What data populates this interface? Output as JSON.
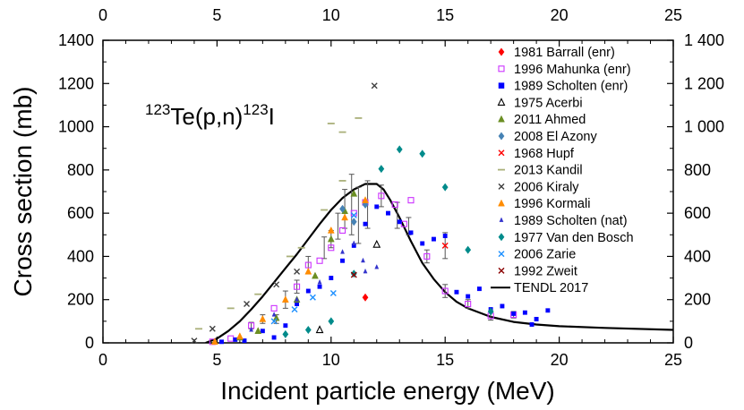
{
  "chart_data": {
    "type": "scatter",
    "annotation": {
      "mass1": "123",
      "mid": "Te(p,n)",
      "mass2": "123",
      "end": "I"
    },
    "xlabel": "Incident particle energy (MeV)",
    "ylabel": "Cross section (mb)",
    "xlim": [
      0,
      25
    ],
    "ylim": [
      0,
      1400
    ],
    "x_ticks": [
      0,
      5,
      10,
      15,
      20,
      25
    ],
    "y_ticks_left": [
      "0",
      "200",
      "400",
      "600",
      "800",
      "1000",
      "1200",
      "1400"
    ],
    "y_ticks_right": [
      "0",
      "200",
      "400",
      "600",
      "800",
      "1 000",
      "1 200",
      "1 400"
    ],
    "y_tick_values": [
      0,
      200,
      400,
      600,
      800,
      1000,
      1200,
      1400
    ],
    "legend_position": "top-right",
    "series": [
      {
        "name": "1981 Barrall (enr)",
        "marker": "diamond",
        "color": "#ff0000",
        "hollow": false,
        "points": [
          [
            11.5,
            210
          ]
        ]
      },
      {
        "name": "1996 Mahunka (enr)",
        "marker": "square",
        "color": "#cc33ff",
        "hollow": true,
        "points": [
          [
            4.8,
            5
          ],
          [
            5.6,
            20
          ],
          [
            6.5,
            80
          ],
          [
            7.5,
            160
          ],
          [
            8.5,
            260
          ],
          [
            9.0,
            360
          ],
          [
            9.5,
            380
          ],
          [
            10.0,
            440
          ],
          [
            10.5,
            520
          ],
          [
            11.0,
            600
          ],
          [
            11.5,
            650
          ],
          [
            12.2,
            680
          ],
          [
            12.8,
            640
          ],
          [
            13.2,
            550
          ],
          [
            13.5,
            660
          ],
          [
            14.2,
            400
          ],
          [
            15.0,
            240
          ],
          [
            16.0,
            180
          ],
          [
            17.0,
            125
          ],
          [
            18.0,
            130
          ]
        ]
      },
      {
        "name": "1989  Scholten (enr)",
        "marker": "square",
        "color": "#0000ff",
        "hollow": false,
        "points": [
          [
            5.2,
            5
          ],
          [
            5.8,
            15
          ],
          [
            6.2,
            10
          ],
          [
            7.0,
            55
          ],
          [
            7.5,
            25
          ],
          [
            8.0,
            80
          ],
          [
            8.5,
            180
          ],
          [
            9.0,
            240
          ],
          [
            9.5,
            260
          ],
          [
            10.0,
            300
          ],
          [
            10.5,
            380
          ],
          [
            11.0,
            450
          ],
          [
            11.5,
            550
          ],
          [
            12.0,
            630
          ],
          [
            12.5,
            600
          ],
          [
            13.0,
            560
          ],
          [
            13.5,
            510
          ],
          [
            14.0,
            460
          ],
          [
            14.5,
            480
          ],
          [
            15.0,
            495
          ],
          [
            15.5,
            235
          ],
          [
            16.0,
            215
          ],
          [
            16.5,
            250
          ],
          [
            17.0,
            155
          ],
          [
            17.5,
            170
          ],
          [
            18.0,
            135
          ],
          [
            18.5,
            140
          ],
          [
            19.0,
            110
          ],
          [
            19.5,
            150
          ],
          [
            18.8,
            85
          ]
        ]
      },
      {
        "name": "1975 Acerbi",
        "marker": "triangle",
        "color": "#000000",
        "hollow": true,
        "points": [
          [
            9.5,
            60
          ],
          [
            12.0,
            455
          ]
        ]
      },
      {
        "name": "2011 Ahmed",
        "marker": "triangle",
        "color": "#6b8e23",
        "hollow": false,
        "points": [
          [
            6.0,
            25
          ],
          [
            6.8,
            55
          ],
          [
            7.6,
            115
          ],
          [
            8.5,
            200
          ],
          [
            9.3,
            310
          ],
          [
            10.0,
            480
          ],
          [
            10.6,
            610
          ],
          [
            11.0,
            690
          ]
        ]
      },
      {
        "name": "2008 El Azony",
        "marker": "diamond",
        "color": "#4682b4",
        "hollow": false,
        "points": [
          [
            10.5,
            620
          ],
          [
            11.0,
            560
          ],
          [
            11.5,
            640
          ]
        ]
      },
      {
        "name": "1968 Hupf",
        "marker": "x",
        "color": "#ff0000",
        "hollow": false,
        "points": [
          [
            15.0,
            450
          ]
        ]
      },
      {
        "name": "2013 Kandil",
        "marker": "dash",
        "color": "#aab07a",
        "hollow": false,
        "points": [
          [
            4.2,
            65
          ],
          [
            5.6,
            160
          ],
          [
            6.8,
            225
          ],
          [
            8.2,
            400
          ],
          [
            8.7,
            440
          ],
          [
            9.7,
            615
          ],
          [
            10.5,
            750
          ],
          [
            11.2,
            1040
          ],
          [
            10.5,
            975
          ],
          [
            10.0,
            1015
          ]
        ]
      },
      {
        "name": "2006 Kiraly",
        "marker": "x",
        "color": "#404040",
        "hollow": false,
        "points": [
          [
            4.0,
            10
          ],
          [
            4.8,
            65
          ],
          [
            6.3,
            180
          ],
          [
            7.6,
            270
          ],
          [
            8.5,
            330
          ],
          [
            11.9,
            1190
          ]
        ]
      },
      {
        "name": "1996 Kormali",
        "marker": "triangle",
        "color": "#ff8c00",
        "hollow": false,
        "points": [
          [
            4.9,
            5
          ],
          [
            6.0,
            30
          ],
          [
            7.0,
            110
          ],
          [
            8.0,
            200
          ],
          [
            9.0,
            330
          ],
          [
            10.0,
            520
          ],
          [
            10.6,
            580
          ],
          [
            11.5,
            660
          ]
        ]
      },
      {
        "name": "1989 Scholten (nat)",
        "marker": "triangle-small",
        "color": "#3333cc",
        "hollow": false,
        "points": [
          [
            6.5,
            60
          ],
          [
            7.5,
            130
          ],
          [
            8.5,
            200
          ],
          [
            9.5,
            280
          ],
          [
            10.5,
            420
          ],
          [
            11.5,
            330
          ],
          [
            12.0,
            350
          ],
          [
            11.0,
            460
          ],
          [
            11.4,
            380
          ]
        ]
      },
      {
        "name": "1977 Van den Bosch",
        "marker": "diamond",
        "color": "#008b8b",
        "hollow": false,
        "points": [
          [
            8.0,
            40
          ],
          [
            9.0,
            60
          ],
          [
            10.0,
            100
          ],
          [
            11.0,
            320
          ],
          [
            12.2,
            805
          ],
          [
            13.0,
            895
          ],
          [
            14.0,
            875
          ],
          [
            15.0,
            720
          ],
          [
            16.0,
            430
          ],
          [
            17.0,
            145
          ]
        ]
      },
      {
        "name": "2006 Zarie",
        "marker": "x",
        "color": "#1e90ff",
        "hollow": false,
        "points": [
          [
            7.5,
            100
          ],
          [
            8.4,
            155
          ],
          [
            9.2,
            210
          ],
          [
            10.1,
            230
          ],
          [
            11.0,
            590
          ]
        ]
      },
      {
        "name": "1992 Zweit",
        "marker": "x",
        "color": "#8b0000",
        "hollow": false,
        "points": [
          [
            11.0,
            315
          ]
        ]
      }
    ],
    "error_bars": [
      [
        8.5,
        260,
        30
      ],
      [
        9.0,
        360,
        40
      ],
      [
        9.7,
        440,
        50
      ],
      [
        10.0,
        480,
        40
      ],
      [
        10.3,
        540,
        60
      ],
      [
        10.6,
        620,
        90
      ],
      [
        10.9,
        640,
        140
      ],
      [
        11.2,
        590,
        130
      ],
      [
        11.6,
        640,
        110
      ],
      [
        12.2,
        680,
        50
      ],
      [
        12.9,
        590,
        60
      ],
      [
        13.4,
        540,
        40
      ],
      [
        14.2,
        400,
        30
      ],
      [
        15.0,
        240,
        30
      ],
      [
        16.0,
        180,
        20
      ],
      [
        17.0,
        125,
        20
      ],
      [
        18.0,
        130,
        15
      ],
      [
        8.0,
        200,
        40
      ],
      [
        7.0,
        110,
        20
      ],
      [
        6.5,
        80,
        15
      ],
      [
        7.6,
        110,
        20
      ],
      [
        15.0,
        450,
        60
      ]
    ],
    "reference_curve": {
      "name": "TENDL 2017",
      "color": "#000000",
      "x": [
        4.5,
        5.0,
        5.5,
        6.0,
        6.5,
        7.0,
        7.5,
        8.0,
        8.5,
        9.0,
        9.5,
        10.0,
        10.5,
        11.0,
        11.5,
        12.0,
        12.3,
        12.6,
        13.0,
        13.5,
        14.0,
        14.5,
        15.0,
        15.5,
        16.0,
        17.0,
        18.0,
        19.0,
        20.0,
        22.0,
        25.0
      ],
      "y": [
        0,
        20,
        55,
        100,
        155,
        215,
        280,
        345,
        410,
        480,
        550,
        615,
        670,
        710,
        735,
        735,
        710,
        660,
        580,
        470,
        370,
        295,
        235,
        190,
        160,
        120,
        97,
        85,
        77,
        69,
        60
      ]
    }
  }
}
